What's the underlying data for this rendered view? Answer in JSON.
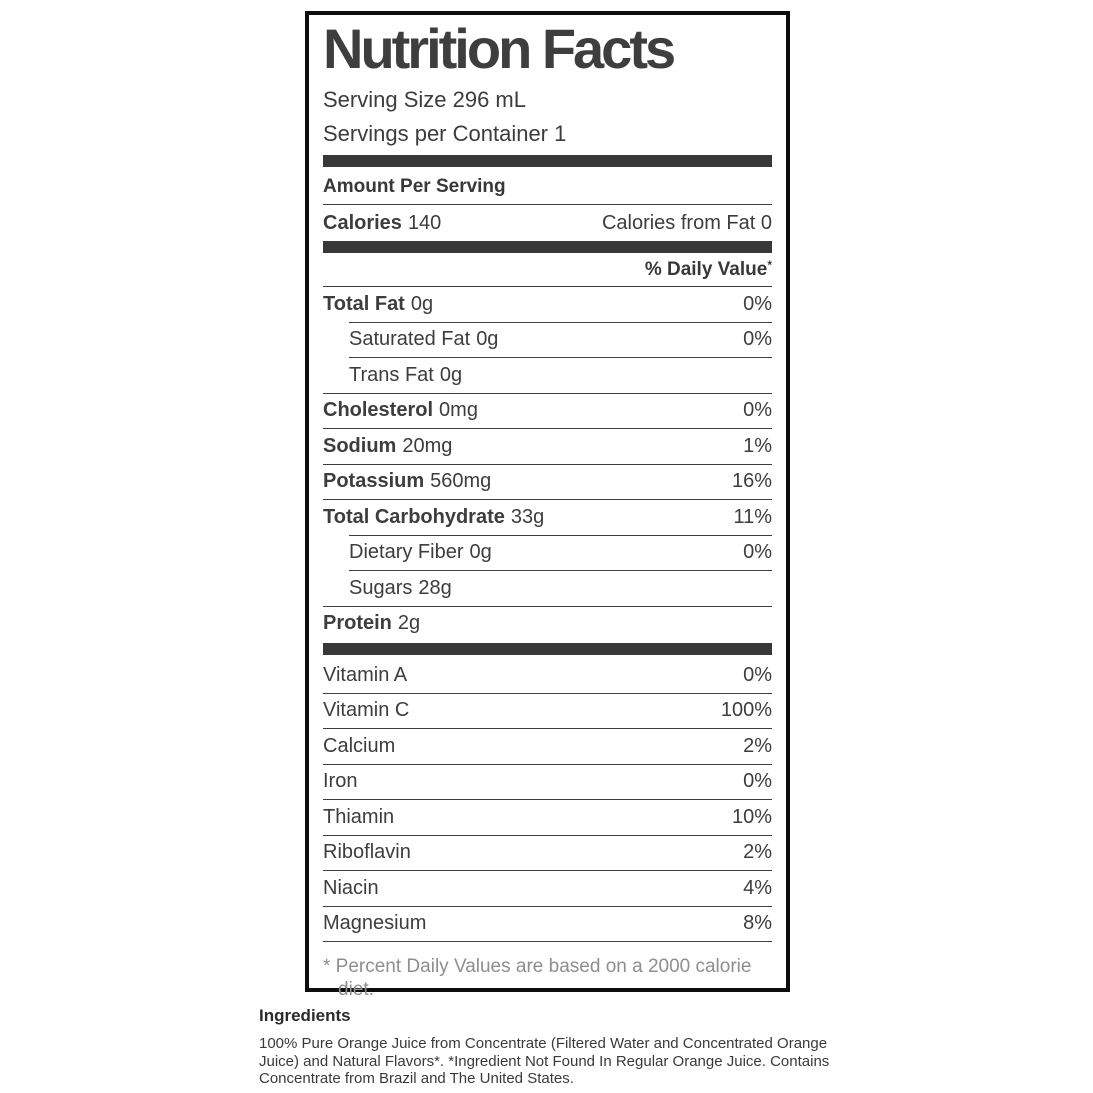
{
  "label": {
    "title": "Nutrition Facts",
    "serving_size": "Serving Size 296 mL",
    "servings_per_container": "Servings per Container 1",
    "amount_per_serving": "Amount Per Serving",
    "calories_label": "Calories",
    "calories_value": "140",
    "calories_from_fat": "Calories from Fat 0",
    "daily_value_header": "% Daily Value",
    "daily_value_asterisk": "*",
    "nutrients": [
      {
        "name": "Total Fat",
        "amount": "0g",
        "dv": "0%"
      },
      {
        "name": "Saturated Fat",
        "amount": "0g",
        "dv": "0%"
      },
      {
        "name": "Trans Fat",
        "amount": "0g",
        "dv": ""
      },
      {
        "name": "Cholesterol",
        "amount": "0mg",
        "dv": "0%"
      },
      {
        "name": "Sodium",
        "amount": "20mg",
        "dv": "1%"
      },
      {
        "name": "Potassium",
        "amount": "560mg",
        "dv": "16%"
      },
      {
        "name": "Total Carbohydrate",
        "amount": "33g",
        "dv": "11%"
      },
      {
        "name": "Dietary Fiber",
        "amount": "0g",
        "dv": "0%"
      },
      {
        "name": "Sugars",
        "amount": "28g",
        "dv": ""
      },
      {
        "name": "Protein",
        "amount": "2g",
        "dv": ""
      }
    ],
    "vitamins": [
      {
        "name": "Vitamin A",
        "dv": "0%"
      },
      {
        "name": "Vitamin C",
        "dv": "100%"
      },
      {
        "name": "Calcium",
        "dv": "2%"
      },
      {
        "name": "Iron",
        "dv": "0%"
      },
      {
        "name": "Thiamin",
        "dv": "10%"
      },
      {
        "name": "Riboflavin",
        "dv": "2%"
      },
      {
        "name": "Niacin",
        "dv": "4%"
      },
      {
        "name": "Magnesium",
        "dv": "8%"
      }
    ],
    "footnote": "* Percent Daily Values are based on a 2000 calorie diet."
  },
  "ingredients": {
    "heading": "Ingredients",
    "text": "100% Pure Orange Juice from Concentrate (Filtered Water and Concentrated Orange Juice) and Natural Flavors*. *Ingredient Not Found In Regular Orange Juice. Contains Concentrate from Brazil and The United States."
  },
  "colors": {
    "text": "#3d3d3d",
    "divider_bar": "#383838",
    "border": "#0d0d0d",
    "footnote_gray": "#8e8e8e",
    "background": "#ffffff"
  }
}
